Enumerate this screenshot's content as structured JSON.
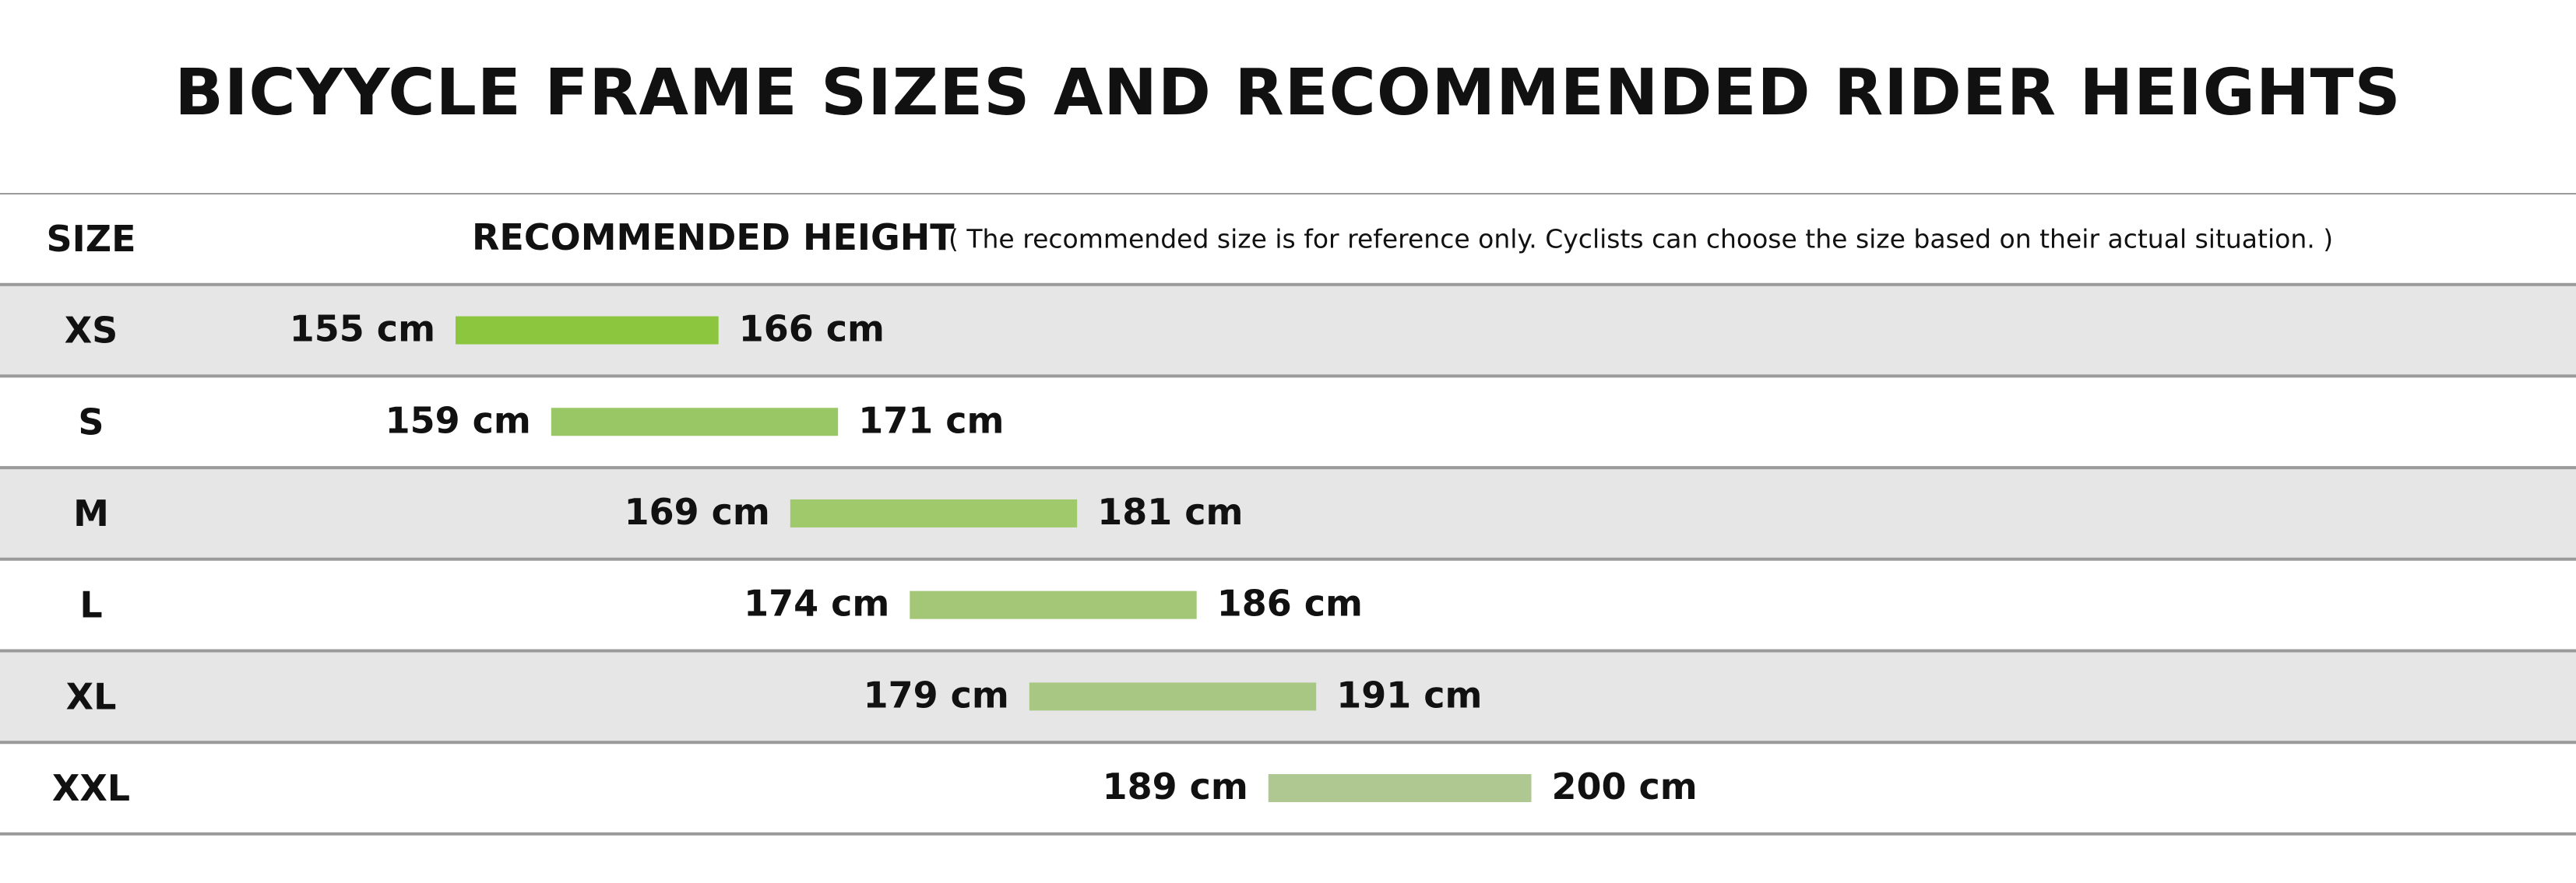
{
  "title": "BICYYCLE FRAME SIZES AND RECOMMENDED RIDER HEIGHTS",
  "chart_data": {
    "type": "bar",
    "orientation": "horizontal",
    "title": "BICYYCLE FRAME SIZES AND RECOMMENDED RIDER HEIGHTS",
    "size_header": "SIZE",
    "height_header": "RECOMMENDED HEIGHT",
    "note": "( The recommended size is for reference only. Cyclists can choose the size based on their actual situation. )",
    "unit": "cm",
    "categories": [
      "XS",
      "S",
      "M",
      "L",
      "XL",
      "XXL"
    ],
    "ranges": [
      {
        "size": "XS",
        "min": 155,
        "max": 166,
        "min_label": "155 cm",
        "max_label": "166 cm",
        "color": "#8cc63f"
      },
      {
        "size": "S",
        "min": 159,
        "max": 171,
        "min_label": "159 cm",
        "max_label": "171 cm",
        "color": "#9ac766"
      },
      {
        "size": "M",
        "min": 169,
        "max": 181,
        "min_label": "169 cm",
        "max_label": "181 cm",
        "color": "#9fc96b"
      },
      {
        "size": "L",
        "min": 174,
        "max": 186,
        "min_label": "174 cm",
        "max_label": "186 cm",
        "color": "#a3c777"
      },
      {
        "size": "XL",
        "min": 179,
        "max": 191,
        "min_label": "179 cm",
        "max_label": "191 cm",
        "color": "#a8c782"
      },
      {
        "size": "XXL",
        "min": 189,
        "max": 200,
        "min_label": "189 cm",
        "max_label": "200 cm",
        "color": "#afc892"
      }
    ],
    "row_colors": [
      "#e6e6e6",
      "#ffffff"
    ],
    "grid": true
  }
}
